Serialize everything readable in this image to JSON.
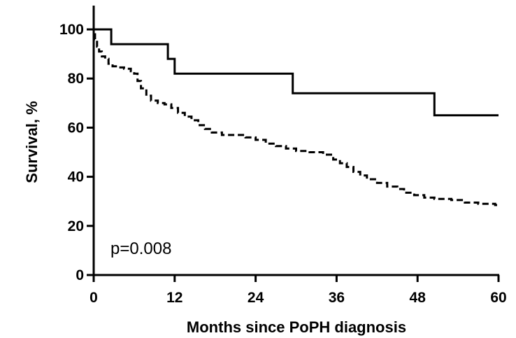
{
  "chart_data": {
    "type": "line",
    "step": true,
    "title": "",
    "xlabel": "Months since PoPH diagnosis",
    "ylabel": "Survival, %",
    "xlim": [
      0,
      60
    ],
    "ylim": [
      0,
      110
    ],
    "xticks": [
      0,
      12,
      24,
      36,
      48,
      60
    ],
    "yticks": [
      0,
      20,
      40,
      60,
      80,
      100
    ],
    "grid": false,
    "legend": "none",
    "annotation": "p=0.008",
    "series": [
      {
        "style": "solid",
        "color": "#000000",
        "points": [
          [
            0,
            100
          ],
          [
            2.6,
            100
          ],
          [
            2.6,
            94
          ],
          [
            11,
            94
          ],
          [
            11,
            88
          ],
          [
            12,
            88
          ],
          [
            12,
            82
          ],
          [
            29.5,
            82
          ],
          [
            29.5,
            74
          ],
          [
            50.5,
            74
          ],
          [
            50.5,
            65
          ],
          [
            60,
            65
          ]
        ]
      },
      {
        "style": "dashed",
        "color": "#000000",
        "points": [
          [
            0,
            98
          ],
          [
            0.2,
            96
          ],
          [
            0.5,
            93
          ],
          [
            0.8,
            91
          ],
          [
            1.2,
            89
          ],
          [
            1.7,
            88
          ],
          [
            2.2,
            86
          ],
          [
            2.8,
            85
          ],
          [
            3.5,
            84.5
          ],
          [
            4.5,
            84
          ],
          [
            5.5,
            83
          ],
          [
            6,
            82
          ],
          [
            6.5,
            79
          ],
          [
            7,
            76
          ],
          [
            7.8,
            73
          ],
          [
            8.5,
            71
          ],
          [
            9.5,
            70
          ],
          [
            10.5,
            69.5
          ],
          [
            11.5,
            68
          ],
          [
            12.5,
            66
          ],
          [
            13.5,
            64.5
          ],
          [
            14.5,
            63
          ],
          [
            15.5,
            61
          ],
          [
            16.5,
            59.5
          ],
          [
            17.5,
            58
          ],
          [
            19,
            57
          ],
          [
            21,
            57
          ],
          [
            22.5,
            56
          ],
          [
            24,
            55
          ],
          [
            25.5,
            53.5
          ],
          [
            27,
            52.5
          ],
          [
            28.5,
            51.5
          ],
          [
            30,
            50.5
          ],
          [
            32,
            50
          ],
          [
            34,
            49
          ],
          [
            35.5,
            47
          ],
          [
            36.5,
            45.5
          ],
          [
            37.5,
            44
          ],
          [
            38.5,
            42
          ],
          [
            39.5,
            40.5
          ],
          [
            40.5,
            39
          ],
          [
            42,
            37.5
          ],
          [
            43.5,
            36
          ],
          [
            45,
            35
          ],
          [
            46,
            33.5
          ],
          [
            47.5,
            32.5
          ],
          [
            49,
            31.5
          ],
          [
            50.5,
            31
          ],
          [
            52,
            31
          ],
          [
            53,
            30.5
          ],
          [
            55,
            29.5
          ],
          [
            57,
            29
          ],
          [
            58.5,
            29
          ],
          [
            59.5,
            28.5
          ],
          [
            60,
            28
          ]
        ]
      }
    ]
  }
}
